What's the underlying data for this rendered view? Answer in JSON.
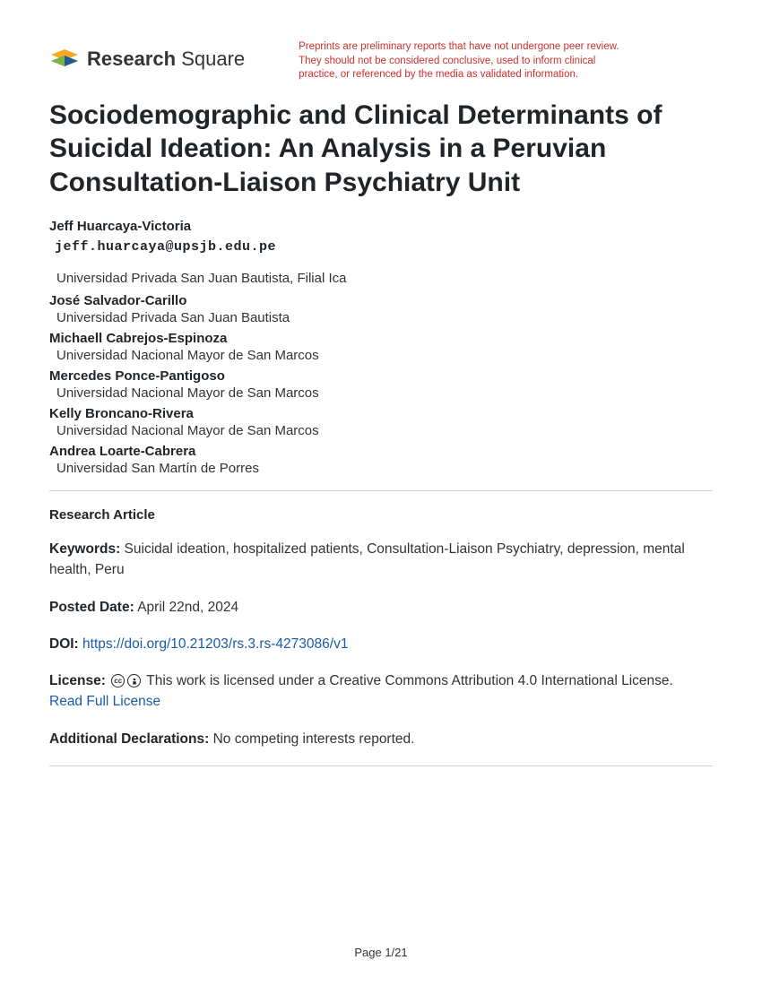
{
  "brand": {
    "name_bold": "Research",
    "name_light": " Square"
  },
  "disclaimer": "Preprints are preliminary reports that have not undergone peer review. They should not be considered conclusive, used to inform clinical practice, or referenced by the media as validated information.",
  "title": "Sociodemographic and Clinical Determinants of Suicidal Ideation: An Analysis in a Peruvian Consultation-Liaison Psychiatry Unit",
  "lead_author": {
    "name": "Jeff Huarcaya-Victoria",
    "email": "jeff.huarcaya@upsjb.edu.pe",
    "affiliation": "Universidad Privada San Juan Bautista, Filial Ica"
  },
  "authors": [
    {
      "name": "José Salvador-Carillo",
      "affiliation": "Universidad Privada San Juan Bautista"
    },
    {
      "name": "Michaell Cabrejos-Espinoza",
      "affiliation": "Universidad Nacional Mayor de San Marcos"
    },
    {
      "name": "Mercedes Ponce-Pantigoso",
      "affiliation": "Universidad Nacional Mayor de San Marcos"
    },
    {
      "name": "Kelly Broncano-Rivera",
      "affiliation": "Universidad Nacional Mayor de San Marcos"
    },
    {
      "name": "Andrea Loarte-Cabrera",
      "affiliation": "Universidad San Martín de Porres"
    }
  ],
  "article_type": "Research Article",
  "keywords": {
    "label": "Keywords:",
    "value": " Suicidal ideation, hospitalized patients, Consultation-Liaison Psychiatry, depression, mental health, Peru"
  },
  "posted": {
    "label": "Posted Date:",
    "value": " April 22nd, 2024"
  },
  "doi": {
    "label": "DOI:",
    "url": "https://doi.org/10.21203/rs.3.rs-4273086/v1"
  },
  "license": {
    "label": "License:",
    "text": " This work is licensed under a Creative Commons Attribution 4.0 International License. ",
    "link": "Read Full License"
  },
  "declarations": {
    "label": "Additional Declarations:",
    "value": " No competing interests reported."
  },
  "footer": "Page 1/21",
  "colors": {
    "disclaimer": "#c9302c",
    "link": "#1a5aa8",
    "logo_green": "#7cb342",
    "logo_blue": "#1e5a8e",
    "logo_yellow": "#f9a825"
  }
}
